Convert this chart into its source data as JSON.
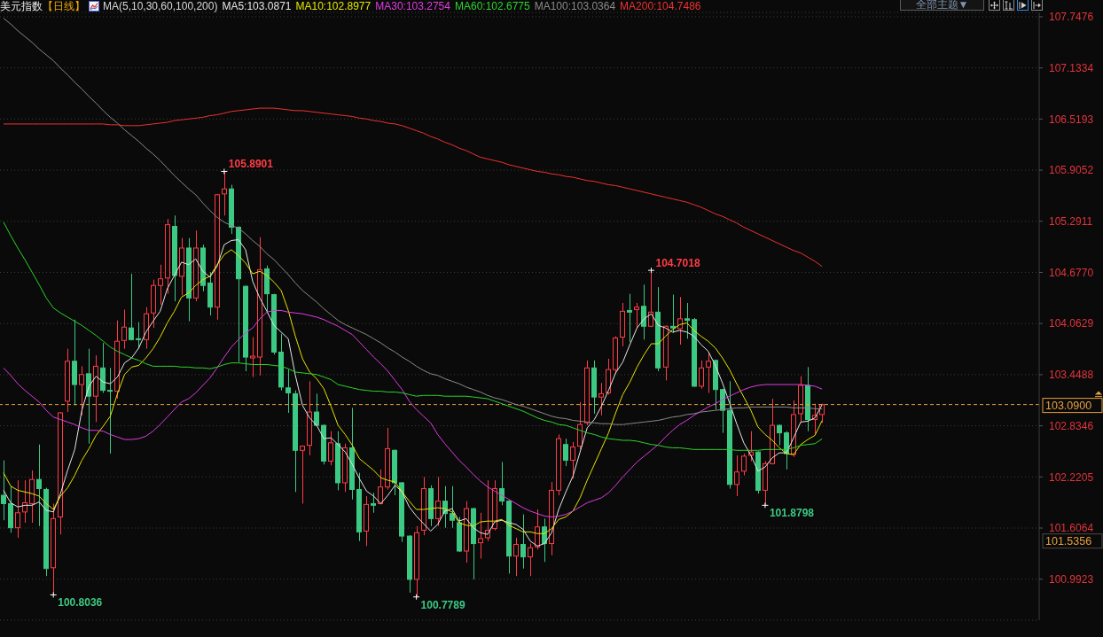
{
  "chart_data": {
    "type": "candlestick",
    "title": "美元指数",
    "subtitle": "【日线】",
    "legend_title": "MA(5,10,30,60,100,200)",
    "legend": "top left",
    "grid": "y",
    "tick_labels": "y",
    "ylim": [
      100.5,
      107.8
    ],
    "yticks": [
      100.9923,
      101.6064,
      102.2205,
      102.8346,
      103.4488,
      104.0629,
      {
        "value": 104.677,
        "label": "104.6770"
      },
      105.2911,
      105.9052,
      106.5193,
      107.1334,
      107.7476
    ],
    "categories": [
      null,
      null,
      null,
      null,
      null,
      null,
      null,
      null,
      null,
      null,
      null,
      null,
      null,
      null,
      null,
      null,
      null,
      null,
      null,
      null,
      null,
      null,
      null,
      null,
      null,
      null,
      null,
      null,
      null,
      null,
      null,
      null,
      null,
      null,
      null,
      null,
      null,
      null,
      null,
      null,
      null,
      null,
      null,
      null,
      null,
      null,
      null,
      null,
      null,
      null,
      null,
      null,
      null,
      null,
      null,
      null,
      null,
      null,
      null,
      null,
      null,
      null,
      null,
      null,
      null,
      null,
      null,
      null,
      null,
      null,
      null,
      null,
      null,
      null,
      null,
      null,
      null,
      null,
      null,
      null,
      null,
      null,
      null,
      null,
      null,
      null,
      null,
      null,
      null,
      null,
      null,
      null,
      null,
      null,
      null,
      null,
      null,
      null,
      null,
      null,
      null,
      null,
      null,
      null,
      null,
      null,
      null,
      null,
      null,
      null,
      null,
      null,
      null,
      null,
      null,
      null,
      null,
      null,
      null,
      null,
      null,
      null,
      null,
      null,
      null,
      null,
      null,
      null,
      null,
      null,
      null,
      null,
      null,
      null,
      null,
      null,
      null,
      null,
      null,
      null,
      null,
      null,
      null,
      null,
      null,
      null
    ],
    "ohlc": [
      [
        102.0,
        102.42,
        101.7,
        101.9
      ],
      [
        101.9,
        102.11,
        101.55,
        101.61
      ],
      [
        101.61,
        102.18,
        101.49,
        101.79
      ],
      [
        101.8,
        102.18,
        101.67,
        101.91
      ],
      [
        101.9,
        102.3,
        101.67,
        102.19
      ],
      [
        102.19,
        102.61,
        101.63,
        102.08
      ],
      [
        102.07,
        102.09,
        101.03,
        101.12
      ],
      [
        101.13,
        101.9,
        100.8036,
        101.72
      ],
      [
        101.74,
        103.0,
        101.53,
        102.99
      ],
      [
        103.13,
        103.76,
        103.0,
        103.61
      ],
      [
        103.61,
        104.11,
        103.08,
        103.33
      ],
      [
        103.33,
        103.55,
        102.96,
        103.45
      ],
      [
        103.46,
        103.76,
        102.62,
        103.19
      ],
      [
        103.19,
        103.68,
        102.88,
        103.55
      ],
      [
        103.53,
        103.83,
        103.23,
        103.26
      ],
      [
        103.26,
        103.53,
        102.5,
        103.25
      ],
      [
        103.25,
        104.1,
        103.16,
        103.85
      ],
      [
        103.86,
        104.23,
        103.76,
        104.02
      ],
      [
        104.01,
        104.66,
        103.86,
        103.87
      ],
      [
        103.88,
        104.08,
        103.76,
        103.87
      ],
      [
        103.87,
        104.26,
        103.76,
        104.18
      ],
      [
        104.19,
        104.59,
        104.01,
        104.52
      ],
      [
        104.52,
        104.77,
        104.29,
        104.6
      ],
      [
        104.61,
        105.32,
        104.42,
        105.25
      ],
      [
        105.23,
        105.36,
        104.33,
        104.64
      ],
      [
        104.63,
        105.09,
        104.4,
        104.97
      ],
      [
        104.97,
        105.09,
        104.09,
        104.37
      ],
      [
        104.37,
        105.18,
        104.33,
        104.97
      ],
      [
        104.97,
        105.01,
        104.45,
        104.52
      ],
      [
        104.55,
        104.68,
        104.16,
        104.26
      ],
      [
        104.26,
        105.62,
        104.11,
        105.61
      ],
      [
        105.62,
        105.8901,
        105.36,
        105.68
      ],
      [
        105.68,
        105.73,
        105.14,
        105.22
      ],
      [
        105.22,
        105.23,
        103.6,
        104.6
      ],
      [
        104.51,
        104.52,
        103.49,
        103.66
      ],
      [
        103.65,
        103.9,
        103.42,
        103.67
      ],
      [
        103.66,
        105.1,
        103.44,
        104.71
      ],
      [
        104.72,
        104.76,
        104.19,
        104.42
      ],
      [
        104.41,
        104.42,
        103.69,
        103.72
      ],
      [
        103.72,
        103.94,
        103.26,
        103.3
      ],
      [
        103.29,
        103.51,
        102.99,
        103.23
      ],
      [
        103.22,
        103.26,
        102.04,
        102.54
      ],
      [
        102.54,
        102.6,
        101.9,
        102.59
      ],
      [
        102.6,
        103.37,
        102.48,
        103.0
      ],
      [
        103.0,
        103.22,
        102.83,
        102.84
      ],
      [
        102.84,
        102.85,
        102.37,
        102.41
      ],
      [
        102.41,
        102.77,
        102.36,
        102.63
      ],
      [
        102.62,
        102.77,
        102.06,
        102.15
      ],
      [
        102.15,
        102.62,
        102.04,
        102.57
      ],
      [
        102.57,
        103.05,
        101.95,
        102.07
      ],
      [
        102.07,
        102.27,
        101.45,
        101.56
      ],
      [
        101.57,
        101.99,
        101.39,
        101.89
      ],
      [
        101.9,
        102.03,
        101.79,
        101.88
      ],
      [
        101.9,
        102.31,
        101.89,
        102.1
      ],
      [
        102.1,
        102.81,
        102.07,
        102.56
      ],
      [
        102.54,
        102.55,
        102.0,
        102.15
      ],
      [
        102.15,
        102.16,
        101.44,
        101.51
      ],
      [
        101.51,
        101.52,
        100.83,
        100.99
      ],
      [
        100.99,
        101.63,
        100.7789,
        101.55
      ],
      [
        101.58,
        102.22,
        101.52,
        102.08
      ],
      [
        102.08,
        102.12,
        101.63,
        101.72
      ],
      [
        101.72,
        102.22,
        101.63,
        101.93
      ],
      [
        101.93,
        102.11,
        101.61,
        101.78
      ],
      [
        101.78,
        102.11,
        101.61,
        101.7
      ],
      [
        101.67,
        101.74,
        101.32,
        101.33
      ],
      [
        101.33,
        101.93,
        101.19,
        101.84
      ],
      [
        101.84,
        101.85,
        100.99,
        101.42
      ],
      [
        101.43,
        101.79,
        101.24,
        101.48
      ],
      [
        101.49,
        102.18,
        101.45,
        101.58
      ],
      [
        101.6,
        102.18,
        101.58,
        102.08
      ],
      [
        102.08,
        102.4,
        101.88,
        101.93
      ],
      [
        101.93,
        101.94,
        101.06,
        101.27
      ],
      [
        101.27,
        101.49,
        101.03,
        101.41
      ],
      [
        101.41,
        101.77,
        101.12,
        101.26
      ],
      [
        101.26,
        101.42,
        101.03,
        101.37
      ],
      [
        101.38,
        101.83,
        101.35,
        101.62
      ],
      [
        101.62,
        101.72,
        101.2,
        101.42
      ],
      [
        101.42,
        102.16,
        101.28,
        102.06
      ],
      [
        102.06,
        102.73,
        102.0,
        102.68
      ],
      [
        102.61,
        102.68,
        102.35,
        102.42
      ],
      [
        102.42,
        102.64,
        102.2,
        102.58
      ],
      [
        102.59,
        103.12,
        102.55,
        102.85
      ],
      [
        102.87,
        103.62,
        102.84,
        103.53
      ],
      [
        103.53,
        103.62,
        102.98,
        103.18
      ],
      [
        103.18,
        103.35,
        102.96,
        103.22
      ],
      [
        103.23,
        103.64,
        103.21,
        103.51
      ],
      [
        103.51,
        103.91,
        103.46,
        103.89
      ],
      [
        103.9,
        104.31,
        103.79,
        104.21
      ],
      [
        104.22,
        104.42,
        103.84,
        104.2
      ],
      [
        104.23,
        104.31,
        104.01,
        104.26
      ],
      [
        104.27,
        104.53,
        103.87,
        104.03
      ],
      [
        104.03,
        104.7018,
        104.02,
        104.2
      ],
      [
        104.2,
        104.5,
        103.49,
        103.53
      ],
      [
        103.54,
        104.04,
        103.38,
        104.03
      ],
      [
        104.03,
        104.41,
        103.95,
        104.01
      ],
      [
        104.0,
        104.38,
        103.81,
        104.12
      ],
      [
        104.12,
        104.31,
        103.88,
        104.1
      ],
      [
        104.11,
        104.13,
        103.3,
        103.31
      ],
      [
        103.31,
        103.62,
        103.28,
        103.53
      ],
      [
        103.54,
        103.71,
        103.23,
        103.61
      ],
      [
        103.62,
        103.63,
        103.03,
        103.27
      ],
      [
        103.27,
        103.28,
        102.75,
        103.02
      ],
      [
        103.02,
        103.37,
        102.08,
        102.13
      ],
      [
        102.13,
        102.48,
        101.99,
        102.28
      ],
      [
        102.29,
        102.5,
        102.24,
        102.47
      ],
      [
        102.48,
        102.77,
        102.41,
        102.52
      ],
      [
        102.52,
        102.53,
        102.02,
        102.06
      ],
      [
        102.06,
        102.41,
        101.8798,
        102.38
      ],
      [
        102.38,
        103.16,
        102.37,
        102.84
      ],
      [
        102.84,
        102.85,
        102.6,
        102.75
      ],
      [
        102.75,
        102.77,
        102.31,
        102.5
      ],
      [
        102.49,
        103.14,
        102.46,
        102.97
      ],
      [
        102.98,
        103.43,
        102.87,
        103.32
      ],
      [
        103.32,
        103.54,
        102.77,
        102.91
      ],
      [
        102.91,
        103.1,
        102.74,
        102.96
      ],
      [
        102.97,
        103.1,
        102.87,
        103.09
      ],
      null,
      null,
      null,
      null,
      null,
      null,
      null,
      null,
      null,
      null,
      null,
      null,
      null,
      null,
      null,
      null,
      null,
      null,
      null,
      null,
      null,
      null,
      null,
      null,
      null,
      null,
      null,
      null,
      null,
      null
    ],
    "colors": [
      "#3cc983",
      "#3cc983",
      "#ff3c46",
      "#ff3c46",
      "#ff3c46",
      "#3cc983",
      "#3cc983",
      "#ff3c46",
      "#ff3c46",
      "#ff3c46",
      "#3cc983",
      "#ff3c46",
      "#3cc983",
      "#ff3c46",
      "#3cc983",
      "#3cc983",
      "#ff3c46",
      "#ff3c46",
      "#3cc983",
      "#3cc983",
      "#ff3c46",
      "#ff3c46",
      "#ff3c46",
      "#ff3c46",
      "#3cc983",
      "#ff3c46",
      "#3cc983",
      "#ff3c46",
      "#3cc983",
      "#3cc983",
      "#ff3c46",
      "#ff3c46",
      "#3cc983",
      "#3cc983",
      "#3cc983",
      "#ff3c46",
      "#ff3c46",
      "#3cc983",
      "#3cc983",
      "#3cc983",
      "#3cc983",
      "#3cc983",
      "#ff3c46",
      "#ff3c46",
      "#3cc983",
      "#3cc983",
      "#ff3c46",
      "#3cc983",
      "#ff3c46",
      "#3cc983",
      "#3cc983",
      "#ff3c46",
      "#3cc983",
      "#ff3c46",
      "#ff3c46",
      "#3cc983",
      "#3cc983",
      "#3cc983",
      "#ff3c46",
      "#ff3c46",
      "#3cc983",
      "#ff3c46",
      "#3cc983",
      "#3cc983",
      "#3cc983",
      "#ff3c46",
      "#3cc983",
      "#ff3c46",
      "#ff3c46",
      "#ff3c46",
      "#3cc983",
      "#3cc983",
      "#ff3c46",
      "#3cc983",
      "#ff3c46",
      "#ff3c46",
      "#3cc983",
      "#ff3c46",
      "#ff3c46",
      "#3cc983",
      "#ff3c46",
      "#ff3c46",
      "#ff3c46",
      "#3cc983",
      "#ff3c46",
      "#ff3c46",
      "#ff3c46",
      "#ff3c46",
      "#3cc983",
      "#ff3c46",
      "#3cc983",
      "#ff3c46",
      "#3cc983",
      "#ff3c46",
      "#3cc983",
      "#ff3c46",
      "#3cc983",
      "#3cc983",
      "#ff3c46",
      "#ff3c46",
      "#3cc983",
      "#3cc983",
      "#3cc983",
      "#ff3c46",
      "#ff3c46",
      "#ff3c46",
      "#3cc983",
      "#ff3c46",
      "#ff3c46",
      "#3cc983",
      "#3cc983",
      "#ff3c46",
      "#ff3c46",
      "#3cc983",
      "#ff3c46",
      "#ff3c46",
      null,
      null,
      null,
      null,
      null,
      null,
      null,
      null,
      null,
      null,
      null,
      null,
      null,
      null,
      null,
      null,
      null,
      null,
      null,
      null,
      null,
      null,
      null,
      null,
      null,
      null,
      null,
      null,
      null,
      null
    ],
    "series": [
      {
        "type": "line",
        "name": "MA5:103.0871",
        "color": "#e6e6e6",
        "values": [
          102.06,
          101.91,
          101.86,
          101.88,
          101.88,
          101.92,
          101.82,
          101.8,
          102.02,
          102.3,
          102.55,
          103.02,
          103.31,
          103.43,
          103.36,
          103.34,
          103.42,
          103.59,
          103.65,
          103.77,
          103.96,
          104.09,
          104.21,
          104.48,
          104.64,
          104.8,
          104.77,
          104.84,
          104.69,
          104.62,
          104.75,
          105.01,
          105.06,
          105.07,
          104.95,
          104.57,
          104.37,
          104.21,
          104.04,
          103.96,
          103.88,
          103.44,
          103.08,
          102.93,
          102.84,
          102.68,
          102.69,
          102.61,
          102.52,
          102.37,
          102.2,
          102.05,
          101.99,
          101.9,
          102.0,
          102.12,
          102.04,
          101.86,
          101.75,
          101.66,
          101.57,
          101.65,
          101.81,
          101.84,
          101.69,
          101.72,
          101.61,
          101.55,
          101.53,
          101.68,
          101.7,
          101.67,
          101.65,
          101.59,
          101.45,
          101.39,
          101.42,
          101.55,
          101.83,
          102.04,
          102.23,
          102.52,
          102.81,
          102.91,
          103.07,
          103.26,
          103.47,
          103.6,
          103.81,
          104.01,
          104.12,
          104.18,
          104.04,
          104.01,
          103.96,
          103.98,
          103.96,
          103.91,
          103.81,
          103.73,
          103.56,
          103.35,
          103.11,
          102.86,
          102.63,
          102.48,
          102.29,
          102.34,
          102.45,
          102.51,
          102.51,
          102.69,
          102.88,
          102.89,
          102.93,
          103.0871,
          null,
          null,
          null,
          null,
          null,
          null,
          null,
          null,
          null,
          null,
          null,
          null,
          null,
          null,
          null,
          null,
          null,
          null,
          null,
          null,
          null,
          null,
          null,
          null,
          null,
          null,
          null,
          null,
          null,
          null
        ]
      },
      {
        "type": "line",
        "name": "MA10:102.8977",
        "color": "#e6e600",
        "values": [
          102.27,
          102.11,
          102.06,
          102.04,
          102.02,
          101.99,
          101.9,
          101.83,
          101.99,
          102.09,
          102.24,
          102.42,
          102.56,
          102.72,
          102.83,
          102.95,
          103.22,
          103.45,
          103.54,
          103.56,
          103.65,
          103.76,
          103.9,
          104.07,
          104.21,
          104.38,
          104.43,
          104.52,
          104.59,
          104.63,
          104.77,
          104.89,
          104.95,
          104.88,
          104.79,
          104.66,
          104.69,
          104.64,
          104.56,
          104.46,
          104.22,
          103.91,
          103.64,
          103.48,
          103.4,
          103.28,
          103.07,
          102.84,
          102.73,
          102.6,
          102.44,
          102.37,
          102.3,
          102.21,
          102.18,
          102.16,
          102.04,
          101.93,
          101.83,
          101.83,
          101.84,
          101.85,
          101.84,
          101.8,
          101.67,
          101.64,
          101.63,
          101.68,
          101.69,
          101.69,
          101.71,
          101.64,
          101.6,
          101.56,
          101.56,
          101.54,
          101.54,
          101.6,
          101.71,
          101.74,
          101.81,
          101.97,
          102.18,
          102.37,
          102.56,
          102.75,
          102.99,
          103.21,
          103.36,
          103.54,
          103.69,
          103.82,
          103.82,
          103.91,
          103.99,
          104.05,
          104.07,
          103.98,
          103.91,
          103.85,
          103.77,
          103.65,
          103.51,
          103.34,
          103.18,
          103.02,
          102.82,
          102.73,
          102.66,
          102.57,
          102.5,
          102.49,
          102.61,
          102.67,
          102.72,
          102.8977,
          null,
          null,
          null,
          null,
          null,
          null,
          null,
          null,
          null,
          null,
          null,
          null,
          null,
          null,
          null,
          null,
          null,
          null,
          null,
          null,
          null,
          null,
          null,
          null,
          null,
          null,
          null,
          null,
          null,
          null
        ]
      },
      {
        "type": "line",
        "name": "MA30:103.2754",
        "color": "#e03ce0",
        "values": [
          103.53,
          103.44,
          103.34,
          103.26,
          103.19,
          103.12,
          103.02,
          102.94,
          102.91,
          102.88,
          102.85,
          102.81,
          102.78,
          102.78,
          102.77,
          102.73,
          102.7,
          102.67,
          102.67,
          102.68,
          102.71,
          102.77,
          102.85,
          102.94,
          103.03,
          103.12,
          103.16,
          103.23,
          103.32,
          103.41,
          103.53,
          103.66,
          103.78,
          103.87,
          103.95,
          104.01,
          104.12,
          104.2,
          104.22,
          104.22,
          104.2,
          104.19,
          104.18,
          104.16,
          104.14,
          104.11,
          104.07,
          104.03,
          103.98,
          103.93,
          103.84,
          103.75,
          103.66,
          103.58,
          103.49,
          103.38,
          103.27,
          103.13,
          103.03,
          102.95,
          102.87,
          102.73,
          102.62,
          102.52,
          102.42,
          102.34,
          102.25,
          102.17,
          102.1,
          102.05,
          102.0,
          101.95,
          101.9,
          101.85,
          101.81,
          101.78,
          101.75,
          101.74,
          101.75,
          101.77,
          101.81,
          101.86,
          101.91,
          101.94,
          101.97,
          102.03,
          102.12,
          102.22,
          102.31,
          102.4,
          102.47,
          102.54,
          102.61,
          102.7,
          102.78,
          102.85,
          102.9,
          102.96,
          103.01,
          103.06,
          103.1,
          103.15,
          103.19,
          103.23,
          103.27,
          103.3,
          103.32,
          103.33,
          103.33,
          103.33,
          103.33,
          103.33,
          103.33,
          103.32,
          103.31,
          103.2754,
          null,
          null,
          null,
          null,
          null,
          null,
          null,
          null,
          null,
          null,
          null,
          null,
          null,
          null,
          null,
          null,
          null,
          null,
          null,
          null,
          null,
          null,
          null,
          null,
          null,
          null,
          null,
          null,
          null,
          null
        ]
      },
      {
        "type": "line",
        "name": "MA60:102.6775",
        "color": "#2cd42c",
        "values": [
          105.28,
          105.12,
          104.97,
          104.83,
          104.68,
          104.53,
          104.37,
          104.25,
          104.19,
          104.14,
          104.09,
          104.04,
          103.98,
          103.92,
          103.85,
          103.78,
          103.73,
          103.69,
          103.65,
          103.62,
          103.58,
          103.55,
          103.55,
          103.55,
          103.55,
          103.54,
          103.54,
          103.53,
          103.53,
          103.52,
          103.54,
          103.57,
          103.59,
          103.59,
          103.58,
          103.57,
          103.57,
          103.57,
          103.56,
          103.55,
          103.52,
          103.48,
          103.47,
          103.46,
          103.45,
          103.42,
          103.39,
          103.33,
          103.31,
          103.29,
          103.27,
          103.26,
          103.25,
          103.25,
          103.24,
          103.24,
          103.23,
          103.21,
          103.19,
          103.2,
          103.2,
          103.2,
          103.19,
          103.19,
          103.19,
          103.19,
          103.18,
          103.17,
          103.16,
          103.13,
          103.1,
          103.07,
          103.04,
          103.01,
          102.97,
          102.93,
          102.9,
          102.88,
          102.85,
          102.84,
          102.81,
          102.78,
          102.75,
          102.73,
          102.7,
          102.68,
          102.67,
          102.66,
          102.66,
          102.65,
          102.63,
          102.61,
          102.6,
          102.58,
          102.57,
          102.57,
          102.56,
          102.55,
          102.55,
          102.55,
          102.55,
          102.55,
          102.55,
          102.54,
          102.54,
          102.54,
          102.54,
          102.55,
          102.55,
          102.55,
          102.55,
          102.57,
          102.6,
          102.61,
          102.62,
          102.6775,
          null,
          null,
          null,
          null,
          null,
          null,
          null,
          null,
          null,
          null,
          null,
          null,
          null,
          null,
          null,
          null,
          null,
          null,
          null,
          null,
          null,
          null,
          null,
          null,
          null,
          null,
          null,
          null,
          null,
          null
        ]
      },
      {
        "type": "line",
        "name": "MA100:103.0364",
        "color": "#8a8a8a",
        "values": [
          107.73,
          107.66,
          107.58,
          107.51,
          107.44,
          107.36,
          107.29,
          107.22,
          107.13,
          107.05,
          106.96,
          106.88,
          106.79,
          106.71,
          106.62,
          106.54,
          106.47,
          106.39,
          106.32,
          106.25,
          106.17,
          106.1,
          106.02,
          105.93,
          105.84,
          105.76,
          105.68,
          105.61,
          105.51,
          105.42,
          105.34,
          105.28,
          105.24,
          105.21,
          105.14,
          105.06,
          104.99,
          104.9,
          104.83,
          104.74,
          104.65,
          104.55,
          104.46,
          104.39,
          104.32,
          104.24,
          104.17,
          104.1,
          104.05,
          104.01,
          103.97,
          103.93,
          103.88,
          103.83,
          103.77,
          103.72,
          103.66,
          103.61,
          103.55,
          103.5,
          103.46,
          103.44,
          103.4,
          103.37,
          103.34,
          103.3,
          103.27,
          103.24,
          103.2,
          103.17,
          103.15,
          103.12,
          103.09,
          103.07,
          103.04,
          103.01,
          102.98,
          102.95,
          102.93,
          102.92,
          102.9,
          102.89,
          102.88,
          102.87,
          102.86,
          102.86,
          102.85,
          102.85,
          102.86,
          102.87,
          102.88,
          102.89,
          102.9,
          102.92,
          102.94,
          102.95,
          102.97,
          102.98,
          103.0,
          103.01,
          103.02,
          103.03,
          103.04,
          103.05,
          103.05,
          103.06,
          103.06,
          103.06,
          103.06,
          103.06,
          103.06,
          103.05,
          103.05,
          103.05,
          103.04,
          103.0364,
          null,
          null,
          null,
          null,
          null,
          null,
          null,
          null,
          null,
          null,
          null,
          null,
          null,
          null,
          null,
          null,
          null,
          null,
          null,
          null,
          null,
          null,
          null,
          null,
          null,
          null,
          null,
          null,
          null,
          null
        ]
      },
      {
        "type": "line",
        "name": "MA200:104.7486",
        "color": "#f03030",
        "values": [
          106.46,
          106.46,
          106.46,
          106.46,
          106.46,
          106.46,
          106.46,
          106.46,
          106.46,
          106.46,
          106.46,
          106.46,
          106.46,
          106.46,
          106.46,
          106.45,
          106.45,
          106.44,
          106.44,
          106.44,
          106.45,
          106.46,
          106.47,
          106.48,
          106.5,
          106.51,
          106.52,
          106.53,
          106.54,
          106.56,
          106.57,
          106.59,
          106.61,
          106.62,
          106.63,
          106.64,
          106.65,
          106.65,
          106.65,
          106.64,
          106.63,
          106.62,
          106.62,
          106.61,
          106.6,
          106.59,
          106.58,
          106.57,
          106.56,
          106.55,
          106.53,
          106.52,
          106.5,
          106.49,
          106.47,
          106.46,
          106.44,
          106.41,
          106.38,
          106.35,
          106.31,
          106.28,
          106.24,
          106.21,
          106.17,
          106.14,
          106.1,
          106.06,
          106.04,
          106.02,
          106.0,
          105.97,
          105.95,
          105.93,
          105.91,
          105.89,
          105.88,
          105.86,
          105.85,
          105.83,
          105.82,
          105.8,
          105.78,
          105.77,
          105.75,
          105.73,
          105.72,
          105.7,
          105.68,
          105.66,
          105.64,
          105.62,
          105.6,
          105.58,
          105.56,
          105.54,
          105.52,
          105.49,
          105.46,
          105.42,
          105.38,
          105.35,
          105.31,
          105.27,
          105.22,
          105.18,
          105.14,
          105.1,
          105.06,
          105.02,
          104.98,
          104.94,
          104.91,
          104.86,
          104.81,
          104.7486,
          null,
          null,
          null,
          null,
          null,
          null,
          null,
          null,
          null,
          null,
          null,
          null,
          null,
          null,
          null,
          null,
          null,
          null,
          null,
          null,
          null,
          null,
          null,
          null,
          null,
          null,
          null,
          null,
          null,
          null
        ]
      }
    ],
    "ref_lines": [
      {
        "axis": "y",
        "value": 103.09,
        "color": "#e8a040",
        "line_style": "dashed"
      }
    ],
    "annotations": [
      "105.8901",
      "100.8036",
      "100.7789",
      "104.7018",
      "101.8798",
      "103.0900",
      "101.5356",
      "全部主题▼"
    ]
  }
}
